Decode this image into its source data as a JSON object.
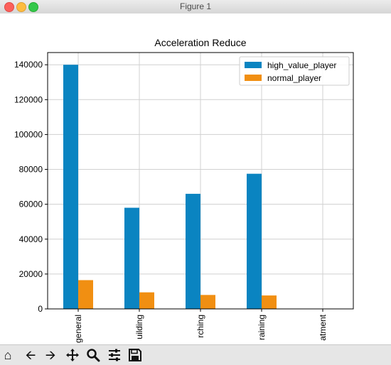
{
  "window": {
    "title": "Figure 1"
  },
  "toolbar": {
    "icons": [
      "home-icon",
      "back-arrow-icon",
      "forward-arrow-icon",
      "pan-icon",
      "zoom-icon",
      "configure-subplots-icon",
      "save-icon"
    ]
  },
  "chart_data": {
    "type": "bar",
    "title": "Acceleration Reduce",
    "xlabel": "",
    "ylabel": "",
    "categories": [
      "general",
      "uilding",
      "rching",
      "raining",
      "atment"
    ],
    "series": [
      {
        "name": "high_value_player",
        "color": "#0a84c1",
        "values": [
          140000,
          58000,
          66000,
          77500,
          200
        ]
      },
      {
        "name": "normal_player",
        "color": "#f18f12",
        "values": [
          16500,
          9500,
          8000,
          7700,
          50
        ]
      }
    ],
    "ylim": [
      0,
      147000
    ],
    "yticks": [
      0,
      20000,
      40000,
      60000,
      80000,
      100000,
      120000,
      140000
    ],
    "ytick_labels": [
      "0",
      "20000",
      "40000",
      "60000",
      "80000",
      "100000",
      "120000",
      "140000"
    ],
    "grid": true,
    "legend_position": "top-right"
  }
}
